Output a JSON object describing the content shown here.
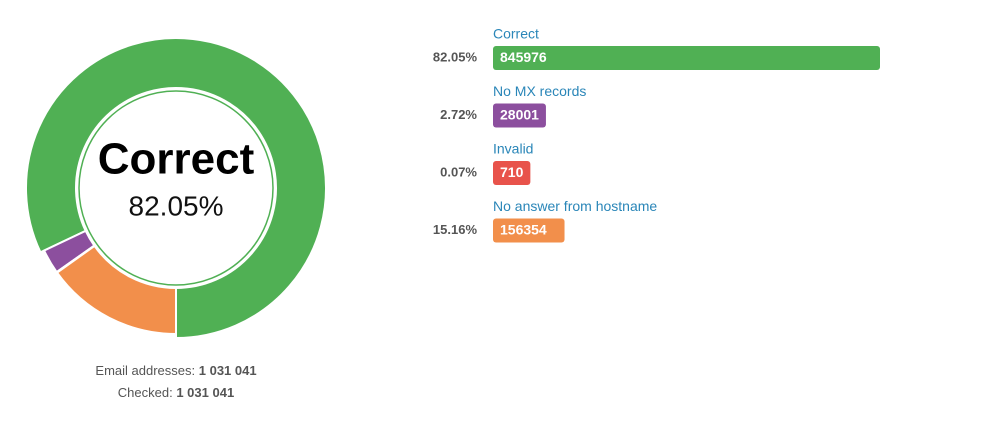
{
  "chart_data": {
    "type": "pie",
    "categories": [
      "Correct",
      "No MX records",
      "Invalid",
      "No answer from hostname"
    ],
    "values": [
      82.05,
      2.72,
      0.07,
      15.16
    ],
    "value_labels": [
      "82.05%",
      "2.72%",
      "0.07%",
      "15.16%"
    ],
    "counts": [
      845976,
      28001,
      710,
      156354
    ],
    "colors": [
      "#50b054",
      "#8c4f9e",
      "#e8534b",
      "#f28f4b"
    ],
    "selected": 0,
    "summary": [
      {
        "label": "Email addresses:",
        "value": "1 031 041"
      },
      {
        "label": "Checked:",
        "value": "1 031 041"
      }
    ]
  }
}
